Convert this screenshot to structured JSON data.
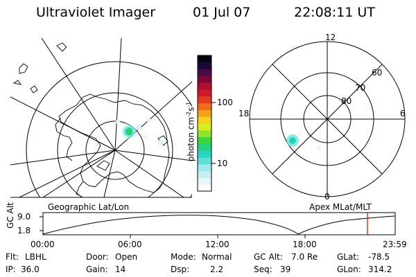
{
  "header": {
    "title": "Ultraviolet Imager",
    "date": "01 Jul 07",
    "time": "22:08:11 UT"
  },
  "colorbar": {
    "unit": "photon cm",
    "unit_exp1": "-2",
    "unit_mid": "s",
    "unit_exp2": "-1",
    "ticks": [
      "100",
      "10"
    ],
    "colors": [
      "#ffffff",
      "#e6f5f7",
      "#c9eef2",
      "#9fe6ef",
      "#5fded9",
      "#27d6bf",
      "#25d37f",
      "#3bd53c",
      "#8fe12a",
      "#d6ec1f",
      "#f3d21d",
      "#f4a21a",
      "#f06c1a",
      "#e53a1e",
      "#d0182a",
      "#b0102f",
      "#7a0a3a",
      "#4a0a48",
      "#1e0a3a",
      "#050512"
    ]
  },
  "geo_panel": {
    "label": "Geographic Lat/Lon"
  },
  "apex_panel": {
    "label": "Apex MLat/MLT",
    "mlt_labels": {
      "top": "12",
      "left": "18",
      "right": "6",
      "bottom": "0"
    },
    "lat_labels": [
      "60",
      "70",
      "80"
    ]
  },
  "altitude_plot": {
    "ylabel": "GC Alt",
    "yticks": [
      "9.0",
      "1.8"
    ],
    "xticks": [
      "00:00",
      "06:00",
      "12:00",
      "18:00",
      "23:59"
    ]
  },
  "info": {
    "filter_label": "Flt:",
    "filter_value": "LBHL",
    "door_label": "Door:",
    "door_value": "Open",
    "mode_label": "Mode:",
    "mode_value": "Normal",
    "gcalt_label": "GC Alt:",
    "gcalt_value": "7.0 Re",
    "glat_label": "GLat:",
    "glat_value": "-78.5",
    "ip_label": "IP:",
    "ip_value": "36.0",
    "gain_label": "Gain:",
    "gain_value": "14",
    "dsp_label": "Dsp:",
    "dsp_value": "2.2",
    "seq_label": "Seq:",
    "seq_value": "39",
    "glon_label": "GLon:",
    "glon_value": "314.2"
  }
}
